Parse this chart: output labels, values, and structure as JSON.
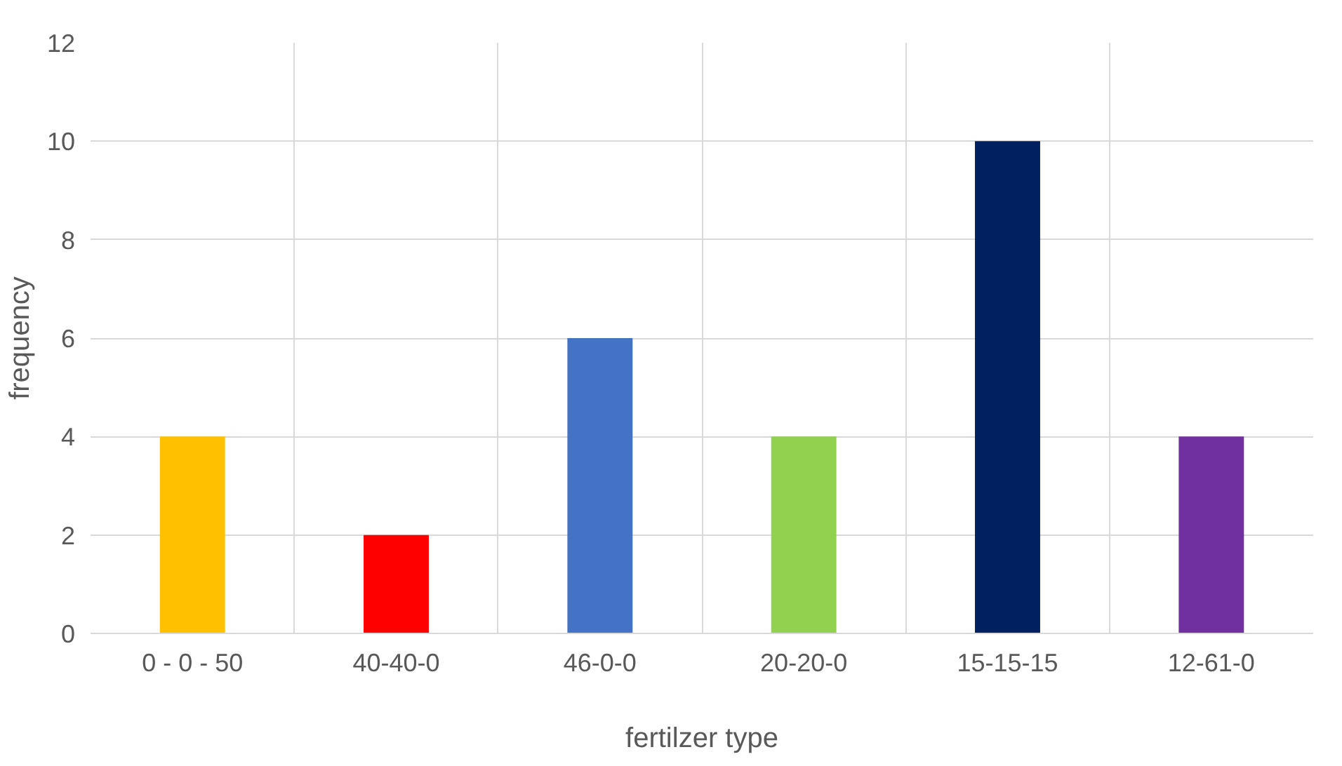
{
  "chart_data": {
    "type": "bar",
    "xlabel": "fertilzer type",
    "ylabel": "frequency",
    "categories": [
      "0 - 0 - 50",
      "40-40-0",
      "46-0-0",
      "20-20-0",
      "15-15-15",
      "12-61-0"
    ],
    "values": [
      4,
      2,
      6,
      4,
      10,
      4
    ],
    "colors": [
      "#ffc000",
      "#ff0000",
      "#4472c4",
      "#92d050",
      "#002060",
      "#7030a0"
    ],
    "ylim": [
      0,
      12
    ],
    "yticks": [
      0,
      2,
      4,
      6,
      8,
      10,
      12
    ],
    "grid": true
  }
}
